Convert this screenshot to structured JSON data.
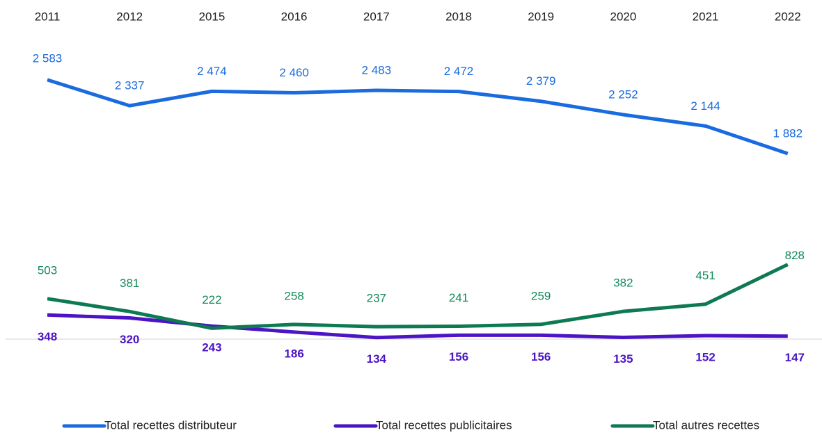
{
  "chart_data": {
    "type": "line",
    "categories": [
      "2011",
      "2012",
      "2015",
      "2016",
      "2017",
      "2018",
      "2019",
      "2020",
      "2021",
      "2022"
    ],
    "ylim": [
      0,
      2800
    ],
    "series": [
      {
        "name": "Total recettes distributeur",
        "color": "#1a6be0",
        "values": [
          2583,
          2337,
          2474,
          2460,
          2483,
          2472,
          2379,
          2252,
          2144,
          1882
        ],
        "value_labels": [
          "2 583",
          "2 337",
          "2 474",
          "2 460",
          "2 483",
          "2 472",
          "2 379",
          "2 252",
          "2 144",
          "1 882"
        ]
      },
      {
        "name": "Total recettes publicitaires",
        "color": "#4b14c4",
        "values": [
          348,
          320,
          243,
          186,
          134,
          156,
          156,
          135,
          152,
          147
        ]
      },
      {
        "name": "Total autres recettes",
        "color": "#0e7a52",
        "values": [
          503,
          381,
          222,
          258,
          237,
          241,
          259,
          382,
          451,
          828
        ]
      }
    ]
  }
}
